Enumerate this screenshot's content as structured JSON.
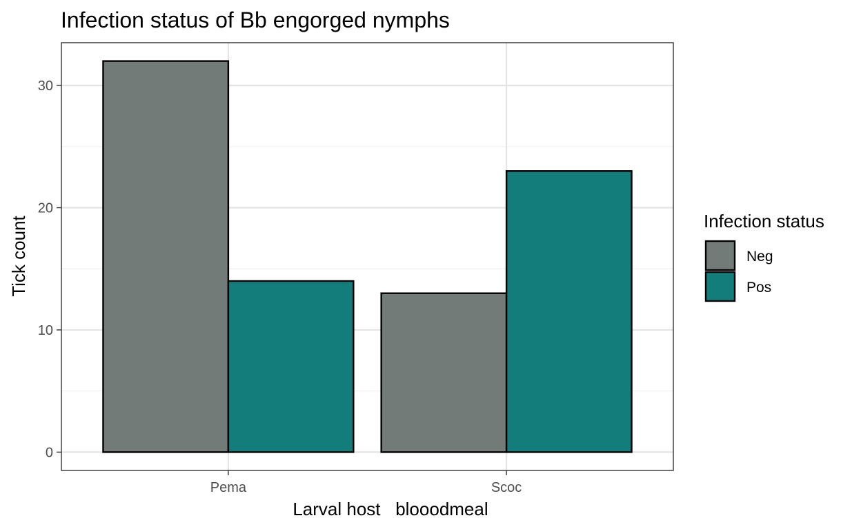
{
  "chart_data": {
    "type": "bar",
    "title": "Infection status of Bb engorged nymphs",
    "xlabel": "Larval host   blooodmeal",
    "ylabel": "Tick count",
    "categories": [
      "Pema",
      "Scoc"
    ],
    "series": [
      {
        "name": "Neg",
        "values": [
          32,
          13
        ],
        "color": "#737b79"
      },
      {
        "name": "Pos",
        "values": [
          14,
          23
        ],
        "color": "#127d7b"
      }
    ],
    "ylim": [
      -1.5,
      33.5
    ],
    "yticks": [
      0,
      10,
      20,
      30
    ],
    "ytick_labels": [
      "0",
      "10",
      "20",
      "30"
    ],
    "grid": true,
    "legend": {
      "title": "Infection status",
      "position": "right"
    }
  }
}
